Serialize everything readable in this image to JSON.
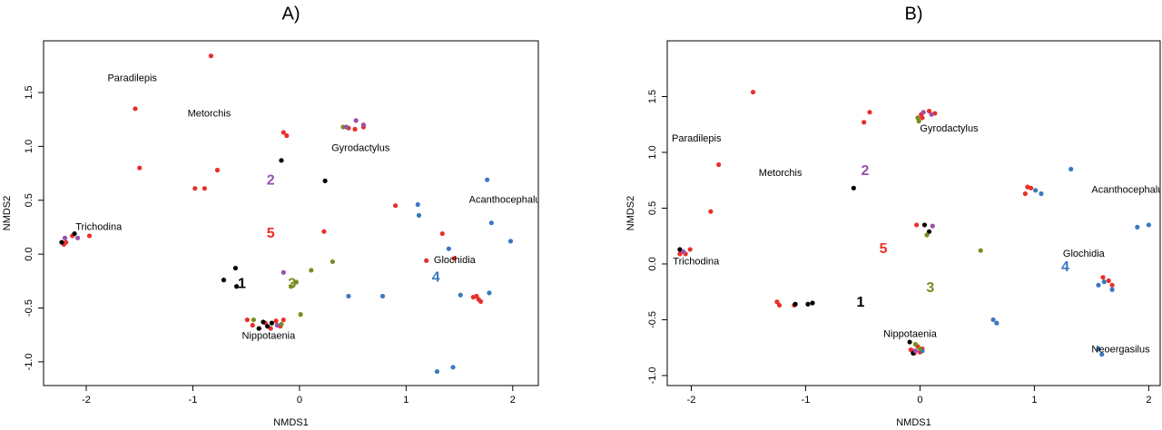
{
  "chart_data": [
    {
      "type": "scatter",
      "title": "A)",
      "x_label": "NMDS1",
      "y_label": "NMDS2",
      "xlim": [
        -2.4,
        2.24
      ],
      "ylim": [
        -1.22,
        1.98
      ],
      "xticks": [
        -2,
        -1,
        0,
        1,
        2
      ],
      "yticks": [
        {
          "value": -1,
          "label": "-1.0"
        },
        -0.5,
        {
          "value": 0,
          "label": "0.0"
        },
        0.5,
        {
          "value": 1,
          "label": "1.0"
        },
        1.5
      ],
      "series": [
        {
          "color": "#e8302a",
          "x": [
            -0.83,
            -1.54,
            -1.5,
            -0.98,
            -0.89,
            -0.77,
            -0.15,
            -0.12,
            0.23,
            0.9,
            1.34,
            1.19,
            -2.19,
            -2.21,
            -1.97,
            -2.13,
            -0.49,
            -0.44,
            -0.38,
            -0.32,
            -0.27,
            -0.22,
            -0.18,
            -0.15,
            0.46,
            0.52,
            0.6,
            1.63,
            1.68,
            1.7,
            1.66,
            1.45
          ],
          "y": [
            1.84,
            1.35,
            0.8,
            0.61,
            0.61,
            0.78,
            1.13,
            1.1,
            0.21,
            0.45,
            0.19,
            -0.06,
            0.11,
            0.09,
            0.17,
            0.17,
            -0.61,
            -0.66,
            -0.69,
            -0.64,
            -0.69,
            -0.62,
            -0.67,
            -0.61,
            1.17,
            1.16,
            1.18,
            -0.4,
            -0.42,
            -0.44,
            -0.39,
            -0.04
          ]
        },
        {
          "color": "#000000",
          "x": [
            -0.17,
            0.24,
            -0.6,
            -0.71,
            -0.59,
            -2.23,
            -2.11,
            -0.34,
            -0.26,
            -0.38,
            -0.3
          ],
          "y": [
            0.87,
            0.68,
            -0.13,
            -0.24,
            -0.3,
            0.11,
            0.19,
            -0.63,
            -0.64,
            -0.69,
            -0.67
          ]
        },
        {
          "color": "#3a78c2",
          "x": [
            1.76,
            1.11,
            1.12,
            1.8,
            1.98,
            1.4,
            0.46,
            0.78,
            1.51,
            1.78,
            1.29,
            1.44
          ],
          "y": [
            0.69,
            0.46,
            0.36,
            0.29,
            0.12,
            0.05,
            -0.39,
            -0.39,
            -0.38,
            -0.36,
            -1.09,
            -1.05
          ]
        },
        {
          "color": "#7a8c1e",
          "x": [
            0.11,
            0.31,
            -0.03,
            -0.08,
            0.01,
            0.41,
            -0.43,
            -0.17
          ],
          "y": [
            -0.15,
            -0.07,
            -0.26,
            -0.3,
            -0.56,
            1.18,
            -0.61,
            -0.65
          ]
        },
        {
          "color": "#9a4fb0",
          "x": [
            -2.2,
            -2.08,
            -0.15,
            0.53,
            0.6,
            0.44,
            -0.21
          ],
          "y": [
            0.15,
            0.15,
            -0.17,
            1.24,
            1.2,
            1.18,
            -0.66
          ]
        }
      ],
      "annotations": [
        {
          "text": "Paradilepis",
          "x": -1.8,
          "y": 1.63
        },
        {
          "text": "Metorchis",
          "x": -1.05,
          "y": 1.3
        },
        {
          "text": "Gyrodactylus",
          "x": 0.3,
          "y": 0.98
        },
        {
          "text": "Acanthocephalu",
          "x": 1.59,
          "y": 0.5
        },
        {
          "text": "Trichodina",
          "x": -2.1,
          "y": 0.25
        },
        {
          "text": "Glochidia",
          "x": 1.26,
          "y": -0.06
        },
        {
          "text": "Nippotaenia",
          "x": -0.54,
          "y": -0.76
        }
      ],
      "cluster_labels": [
        {
          "text": "2",
          "x": -0.27,
          "y": 0.68,
          "color": "#9a4fb0"
        },
        {
          "text": "5",
          "x": -0.27,
          "y": 0.19,
          "color": "#e8302a"
        },
        {
          "text": "1",
          "x": -0.54,
          "y": -0.28,
          "color": "#000000"
        },
        {
          "text": "3",
          "x": -0.07,
          "y": -0.28,
          "color": "#7a8c1e"
        },
        {
          "text": "4",
          "x": 1.28,
          "y": -0.22,
          "color": "#3a78c2"
        }
      ]
    },
    {
      "type": "scatter",
      "title": "B)",
      "x_label": "NMDS1",
      "y_label": "NMDS2",
      "xlim": [
        -2.21,
        2.1
      ],
      "ylim": [
        -1.09,
        2.0
      ],
      "xticks": [
        -2,
        -1,
        0,
        1,
        2
      ],
      "yticks": [
        {
          "value": -1,
          "label": "-1.0"
        },
        -0.5,
        {
          "value": 0,
          "label": "0.0"
        },
        0.5,
        {
          "value": 1,
          "label": "1.0"
        },
        1.5
      ],
      "series": [
        {
          "color": "#e8302a",
          "x": [
            -1.46,
            -0.44,
            -0.49,
            -1.76,
            -1.83,
            -2.09,
            -2.05,
            -2.01,
            -2.1,
            -1.25,
            -1.23,
            -1.1,
            -0.03,
            0.01,
            0.02,
            0.08,
            0.13,
            0.94,
            0.97,
            0.92,
            1.65,
            1.68,
            1.6,
            -0.08,
            -0.05,
            -0.02,
            0.0,
            0.02,
            -0.06
          ],
          "y": [
            1.54,
            1.36,
            1.27,
            0.89,
            0.47,
            0.11,
            0.09,
            0.13,
            0.09,
            -0.34,
            -0.37,
            -0.37,
            0.35,
            1.34,
            1.31,
            1.37,
            1.35,
            0.69,
            0.68,
            0.63,
            -0.15,
            -0.19,
            -0.12,
            -0.77,
            -0.8,
            -0.74,
            -0.79,
            -0.76,
            -0.78
          ]
        },
        {
          "color": "#000000",
          "x": [
            -0.58,
            -0.98,
            -0.94,
            -1.09,
            0.04,
            0.08,
            -2.1,
            -0.09,
            -0.06
          ],
          "y": [
            0.68,
            -0.36,
            -0.35,
            -0.36,
            0.35,
            0.29,
            0.13,
            -0.7,
            -0.8
          ]
        },
        {
          "color": "#3a78c2",
          "x": [
            1.32,
            1.01,
            1.06,
            1.9,
            2.0,
            1.56,
            1.68,
            1.61,
            0.64,
            0.67,
            1.56,
            1.59,
            0.02
          ],
          "y": [
            0.85,
            0.66,
            0.63,
            0.33,
            0.35,
            -0.19,
            -0.23,
            -0.16,
            -0.5,
            -0.53,
            -0.76,
            -0.81,
            -0.78
          ]
        },
        {
          "color": "#7a8c1e",
          "x": [
            0.53,
            0.06,
            -0.02,
            -0.01,
            -0.04,
            0.0
          ],
          "y": [
            0.12,
            0.26,
            1.31,
            1.28,
            -0.72,
            -0.76
          ]
        },
        {
          "color": "#9a4fb0",
          "x": [
            0.11,
            0.03,
            0.1,
            -0.04,
            -2.07
          ],
          "y": [
            0.34,
            1.36,
            1.34,
            -0.78,
            0.11
          ]
        }
      ],
      "annotations": [
        {
          "text": "Paradilepis",
          "x": -2.17,
          "y": 1.12
        },
        {
          "text": "Metorchis",
          "x": -1.41,
          "y": 0.81
        },
        {
          "text": "Gyrodactylus",
          "x": 0.0,
          "y": 1.21
        },
        {
          "text": "Acanthocephalu",
          "x": 1.5,
          "y": 0.66
        },
        {
          "text": "Glochidia",
          "x": 1.25,
          "y": 0.09
        },
        {
          "text": "Trichodina",
          "x": -2.16,
          "y": 0.02
        },
        {
          "text": "Nippotaenia",
          "x": -0.32,
          "y": -0.63
        },
        {
          "text": "Neoergasilus",
          "x": 1.5,
          "y": -0.77
        }
      ],
      "cluster_labels": [
        {
          "text": "2",
          "x": -0.48,
          "y": 0.83,
          "color": "#9a4fb0"
        },
        {
          "text": "5",
          "x": -0.32,
          "y": 0.13,
          "color": "#e8302a"
        },
        {
          "text": "4",
          "x": 1.27,
          "y": -0.03,
          "color": "#3a78c2"
        },
        {
          "text": "3",
          "x": 0.09,
          "y": -0.22,
          "color": "#7a8c1e"
        },
        {
          "text": "1",
          "x": -0.52,
          "y": -0.35,
          "color": "#000000"
        }
      ]
    }
  ]
}
